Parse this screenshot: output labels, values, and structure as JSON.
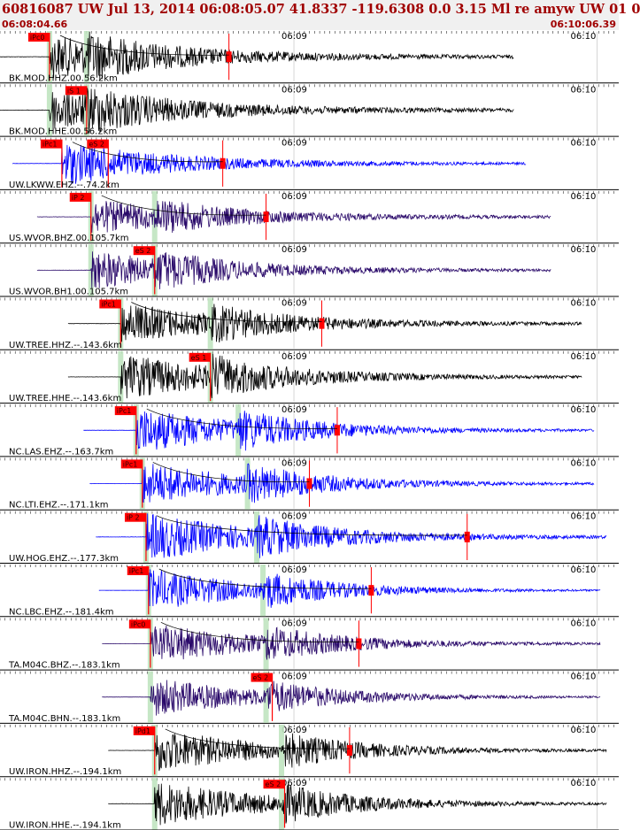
{
  "header": {
    "title": "60816087 UW Jul 13, 2014 06:08:05.07   41.8337 -119.6308  0.0 3.15 Ml re amyw UW 01   0",
    "time_start": "06:08:04.66",
    "time_end": "06:10:06.39"
  },
  "chart_data": {
    "type": "line",
    "title": "60816087 UW Jul 13, 2014 06:08:05.07   41.8337 -119.6308  0.0 3.15 Ml re amyw UW 01   0",
    "x_range": [
      "06:08:04.66",
      "06:10:06.39"
    ],
    "tick_labels": [
      "06:09",
      "06:10"
    ],
    "colors": {
      "black": "#000000",
      "blue": "#0000ff",
      "purple": "#2a0a6a",
      "pick": "#ff0000",
      "theory": "#c0e4c0",
      "grid": "#bbbbbb"
    },
    "series": [
      {
        "name": "BK.MOD.HHZ.00.56.2km",
        "color": "black",
        "pick": "iPc0",
        "pick_t": 0.08,
        "theo": [
          0.08,
          0.14
        ],
        "s_theo": 0.14,
        "onset": 0.08,
        "end": 0.83,
        "base": 0.15,
        "peak": 0.72,
        "amp_pick": 0.37
      },
      {
        "name": "BK.MOD.HHE.00.56.2km",
        "color": "black",
        "pick": "iS 1",
        "pick_t": 0.14,
        "theo": [
          0.08,
          0.14
        ],
        "s_theo": 0.14,
        "onset": 0.08,
        "end": 0.83,
        "base": 0.15,
        "peak": 0.7
      },
      {
        "name": "UW.LKWW.EHZ.--.74.2km",
        "color": "blue",
        "pick": "iPc1",
        "pick_t": 0.1,
        "pick2": "eS 2",
        "pick2_t": 0.175,
        "theo": [],
        "onset": 0.1,
        "end": 0.85,
        "base": 0.1,
        "peak": 0.8,
        "amp_pick": 0.36,
        "start": 0.02
      },
      {
        "name": "US.WVOR.BHZ.00.105.7km",
        "color": "purple",
        "pick": "iP 2",
        "pick_t": 0.147,
        "theo": [
          0.147,
          0.25
        ],
        "s_theo": 0.25,
        "onset": 0.147,
        "end": 0.89,
        "base": 0.12,
        "peak": 0.6,
        "amp_pick": 0.43,
        "start": 0.06
      },
      {
        "name": "US.WVOR.BH1.00.105.7km",
        "color": "purple",
        "pick": "eS 2",
        "pick_t": 0.25,
        "theo": [
          0.147,
          0.25
        ],
        "s_theo": 0.25,
        "onset": 0.147,
        "end": 0.89,
        "base": 0.1,
        "peak": 0.7,
        "start": 0.06
      },
      {
        "name": "UW.TREE.HHZ.--.143.6km",
        "color": "black",
        "pick": "iPc1",
        "pick_t": 0.195,
        "theo": [
          0.195,
          0.34
        ],
        "s_theo": 0.34,
        "onset": 0.195,
        "end": 0.94,
        "base": 0.12,
        "peak": 0.72,
        "amp_pick": 0.52,
        "start": 0.11
      },
      {
        "name": "UW.TREE.HHE.--.143.6km",
        "color": "black",
        "pick": "eS 1",
        "pick_t": 0.34,
        "theo": [
          0.195,
          0.34
        ],
        "s_theo": 0.34,
        "onset": 0.195,
        "end": 0.94,
        "base": 0.1,
        "peak": 0.85,
        "start": 0.11
      },
      {
        "name": "NC.LAS.EHZ.--.163.7km",
        "color": "blue",
        "pick": "iPc1",
        "pick_t": 0.22,
        "theo": [
          0.22,
          0.385
        ],
        "s_theo": 0.385,
        "onset": 0.22,
        "end": 0.96,
        "base": 0.08,
        "peak": 0.85,
        "amp_pick": 0.545,
        "start": 0.135
      },
      {
        "name": "NC.LTI.EHZ.--.171.1km",
        "color": "blue",
        "pick": "iPc1",
        "pick_t": 0.23,
        "theo": [
          0.23,
          0.4
        ],
        "s_theo": 0.4,
        "onset": 0.23,
        "end": 0.96,
        "base": 0.08,
        "peak": 0.8,
        "amp_pick": 0.5,
        "start": 0.145
      },
      {
        "name": "UW.HOG.EHZ.--.177.3km",
        "color": "blue",
        "pick": "iP 2",
        "pick_t": 0.236,
        "theo": [
          0.236,
          0.415
        ],
        "s_theo": 0.415,
        "onset": 0.236,
        "end": 0.98,
        "base": 0.12,
        "peak": 0.85,
        "amp_pick": 0.755,
        "start": 0.155
      },
      {
        "name": "NC.LBC.EHZ.--.181.4km",
        "color": "blue",
        "pick": "iPc1",
        "pick_t": 0.24,
        "theo": [
          0.24,
          0.425
        ],
        "s_theo": 0.425,
        "onset": 0.24,
        "end": 0.97,
        "base": 0.05,
        "peak": 0.8,
        "amp_pick": 0.6,
        "start": 0.16
      },
      {
        "name": "TA.M04C.BHZ.--.183.1km",
        "color": "purple",
        "pick": "iPc0",
        "pick_t": 0.243,
        "theo": [
          0.243,
          0.43
        ],
        "s_theo": 0.43,
        "onset": 0.243,
        "end": 0.97,
        "base": 0.08,
        "peak": 0.75,
        "amp_pick": 0.58,
        "start": 0.165
      },
      {
        "name": "TA.M04C.BHN.--.183.1km",
        "color": "purple",
        "pick": "eS 2",
        "pick_t": 0.44,
        "theo": [
          0.243,
          0.43
        ],
        "s_theo": 0.43,
        "onset": 0.243,
        "end": 0.97,
        "base": 0.06,
        "peak": 0.72,
        "start": 0.165
      },
      {
        "name": "UW.IRON.HHZ.--.194.1km",
        "color": "black",
        "pick": "iPd1",
        "pick_t": 0.25,
        "theo": [
          0.25,
          0.455
        ],
        "s_theo": 0.455,
        "onset": 0.25,
        "end": 0.98,
        "base": 0.08,
        "peak": 0.8,
        "amp_pick": 0.565,
        "start": 0.175
      },
      {
        "name": "UW.IRON.HHE.--.194.1km",
        "color": "black",
        "pick": "eS 2",
        "pick_t": 0.46,
        "theo": [
          0.25,
          0.455
        ],
        "s_theo": 0.455,
        "onset": 0.25,
        "end": 0.98,
        "base": 0.08,
        "peak": 0.85,
        "start": 0.175
      }
    ]
  }
}
